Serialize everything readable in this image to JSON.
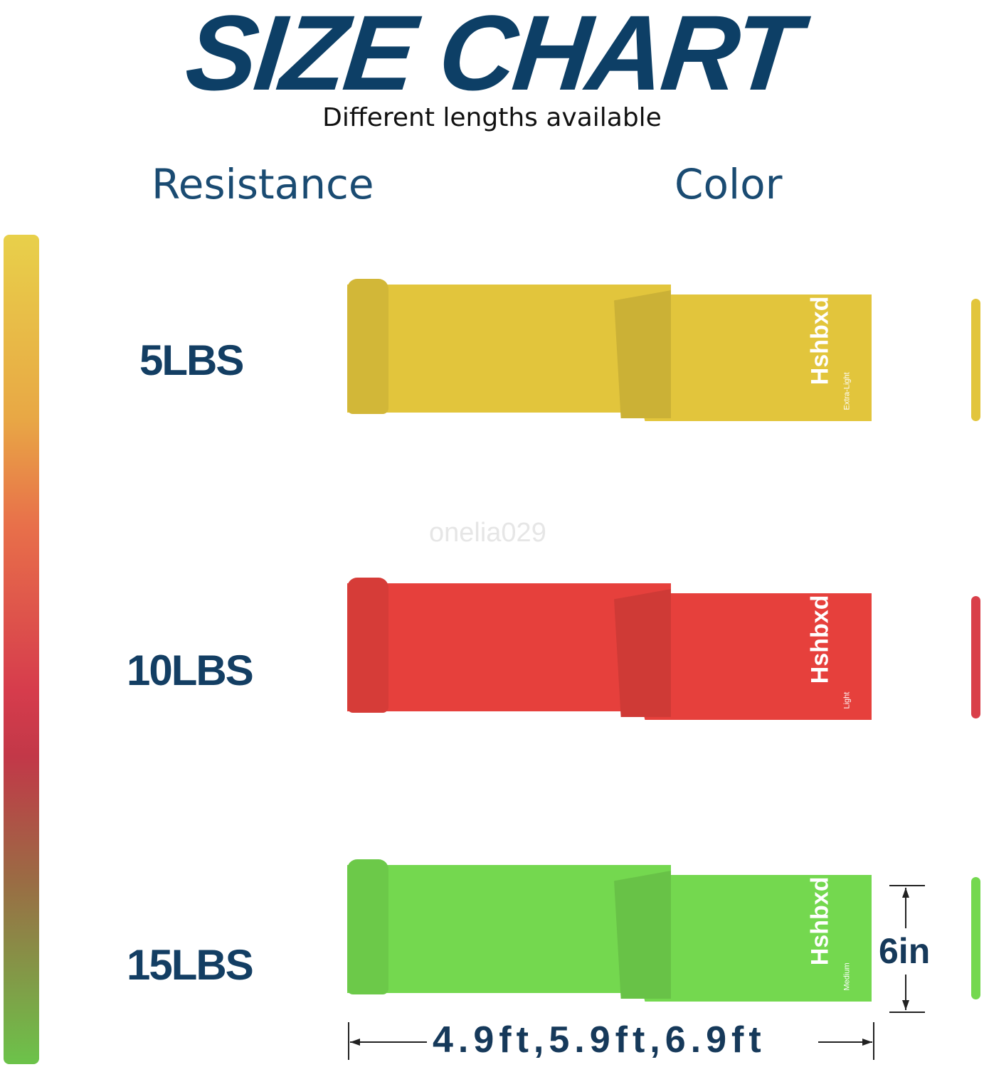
{
  "header": {
    "title": "SIZE CHART",
    "subtitle": "Different lengths available"
  },
  "columns": {
    "resistance": "Resistance",
    "color": "Color"
  },
  "bands": [
    {
      "resistance": "5LBS",
      "brand": "Hshbxd",
      "grade": "Extra-Light",
      "color": "#e2c53c"
    },
    {
      "resistance": "10LBS",
      "brand": "Hshbxd",
      "grade": "Light",
      "color": "#e6403c"
    },
    {
      "resistance": "15LBS",
      "brand": "Hshbxd",
      "grade": "Medium",
      "color": "#74d84f"
    }
  ],
  "dimensions": {
    "width": "6in",
    "lengths": "4.9ft,5.9ft,6.9ft"
  },
  "watermark": "onelia029"
}
